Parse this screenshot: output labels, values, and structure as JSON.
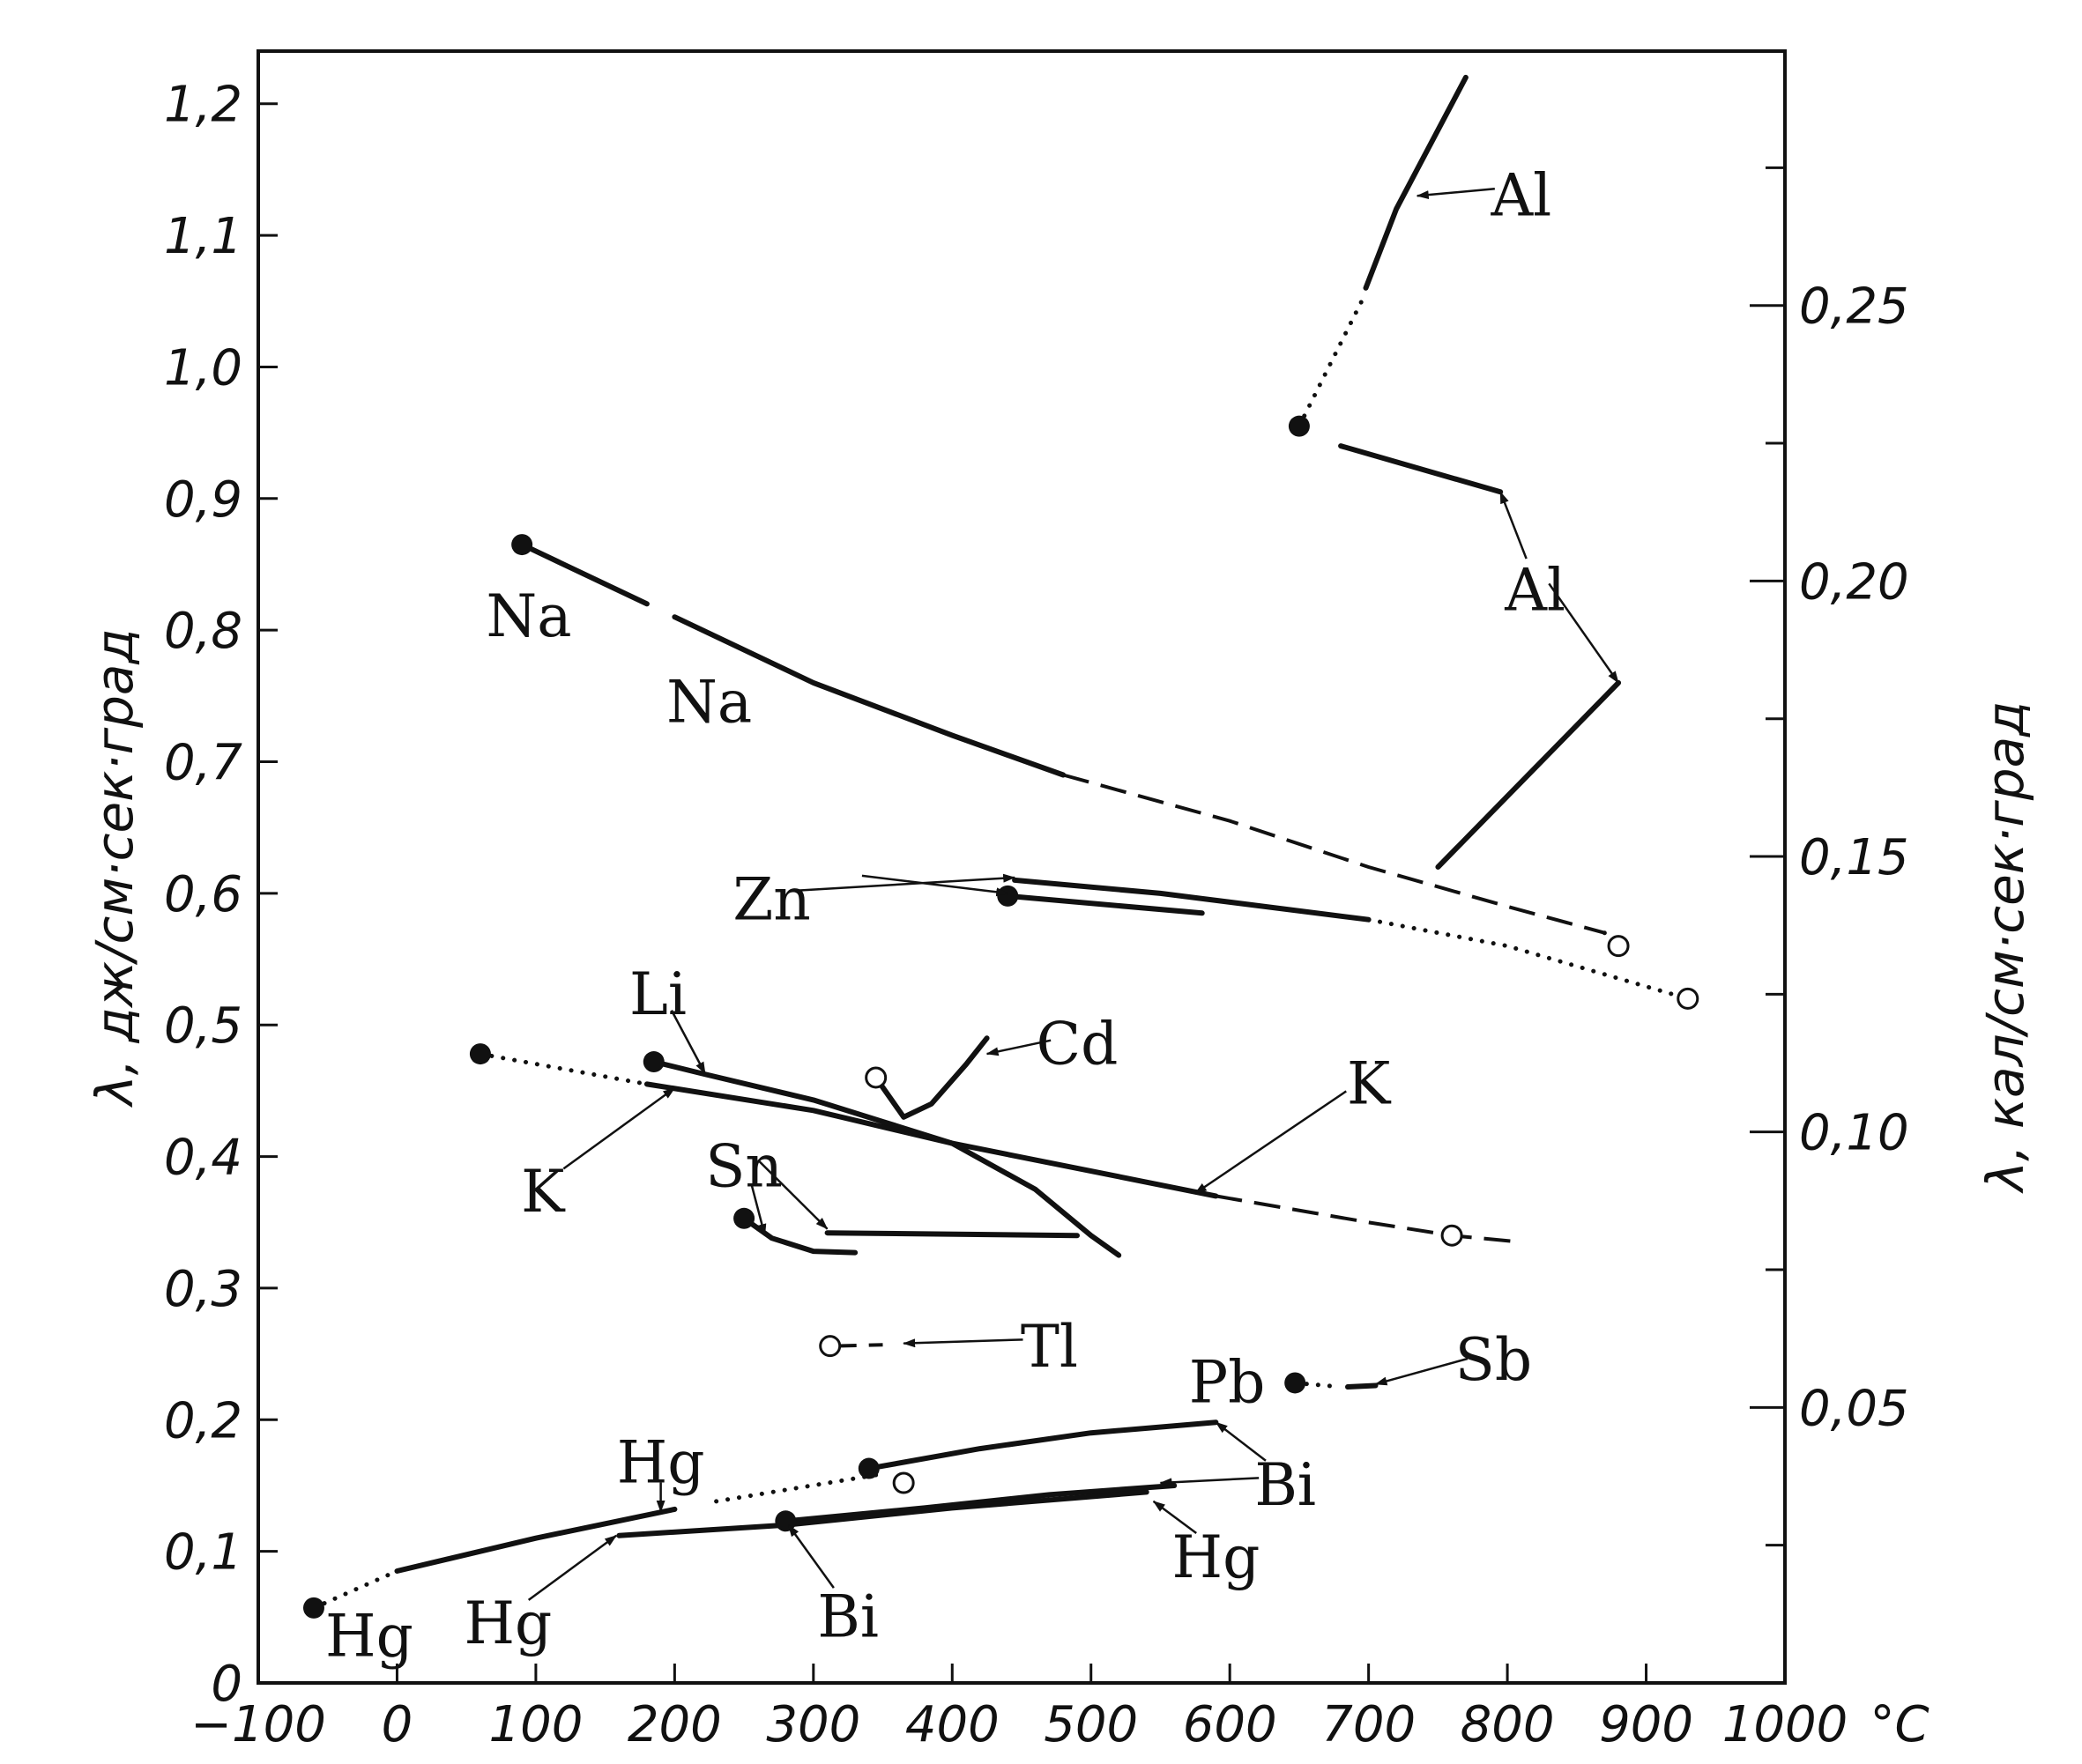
{
  "chart_data": {
    "type": "line",
    "xlabel": "°C",
    "ylabel": "λ,  дж/см·сек·град",
    "y2label": "λ,  кал/см·сек·град",
    "xlim": [
      -100,
      1000
    ],
    "ylim": [
      0,
      1.24
    ],
    "x_ticks": [
      {
        "v": -100,
        "label": "−100"
      },
      {
        "v": 0,
        "label": "0"
      },
      {
        "v": 100,
        "label": "100"
      },
      {
        "v": 200,
        "label": "200"
      },
      {
        "v": 300,
        "label": "300"
      },
      {
        "v": 400,
        "label": "400"
      },
      {
        "v": 500,
        "label": "500"
      },
      {
        "v": 600,
        "label": "600"
      },
      {
        "v": 700,
        "label": "700"
      },
      {
        "v": 800,
        "label": "800"
      },
      {
        "v": 900,
        "label": "900"
      },
      {
        "v": 1000,
        "label": "1000"
      }
    ],
    "y_ticks": [
      {
        "v": 0.0,
        "label": "0"
      },
      {
        "v": 0.1,
        "label": "0,1"
      },
      {
        "v": 0.2,
        "label": "0,2"
      },
      {
        "v": 0.3,
        "label": "0,3"
      },
      {
        "v": 0.4,
        "label": "0,4"
      },
      {
        "v": 0.5,
        "label": "0,5"
      },
      {
        "v": 0.6,
        "label": "0,6"
      },
      {
        "v": 0.7,
        "label": "0,7"
      },
      {
        "v": 0.8,
        "label": "0,8"
      },
      {
        "v": 0.9,
        "label": "0,9"
      },
      {
        "v": 1.0,
        "label": "1,0"
      },
      {
        "v": 1.1,
        "label": "1,1"
      },
      {
        "v": 1.2,
        "label": "1,2"
      }
    ],
    "y2_ticks": [
      {
        "cal": 0.05,
        "label": "0,05"
      },
      {
        "cal": 0.1,
        "label": "0,10"
      },
      {
        "cal": 0.15,
        "label": "0,15"
      },
      {
        "cal": 0.2,
        "label": "0,20"
      },
      {
        "cal": 0.25,
        "label": "0,25"
      }
    ],
    "y2_minor_cal": [
      0.025,
      0.075,
      0.125,
      0.175,
      0.225,
      0.275
    ],
    "cal_to_j": 4.1868,
    "series": [
      {
        "name": "Al",
        "style": "dotted",
        "points": [
          [
            650,
            0.955
          ],
          [
            695,
            1.05
          ]
        ]
      },
      {
        "name": "Al",
        "style": "solid",
        "points": [
          [
            698,
            1.06
          ],
          [
            720,
            1.12
          ],
          [
            735,
            1.15
          ],
          [
            770,
            1.22
          ]
        ]
      },
      {
        "name": "Al",
        "style": "solid",
        "points": [
          [
            680,
            0.94
          ],
          [
            795,
            0.905
          ]
        ]
      },
      {
        "name": "Al",
        "style": "solid",
        "points": [
          [
            750,
            0.62
          ],
          [
            880,
            0.76
          ]
        ]
      },
      {
        "name": "Na",
        "style": "solid",
        "points": [
          [
            90,
            0.865
          ],
          [
            180,
            0.82
          ]
        ]
      },
      {
        "name": "Na",
        "style": "solid",
        "points": [
          [
            200,
            0.81
          ],
          [
            300,
            0.76
          ],
          [
            400,
            0.72
          ],
          [
            480,
            0.69
          ]
        ]
      },
      {
        "name": "Na",
        "style": "dashed",
        "points": [
          [
            480,
            0.69
          ],
          [
            600,
            0.655
          ],
          [
            700,
            0.62
          ],
          [
            800,
            0.59
          ],
          [
            870,
            0.57
          ]
        ]
      },
      {
        "name": "Na",
        "style": "dotted",
        "points": [
          [
            870,
            0.57
          ],
          [
            880,
            0.56
          ]
        ]
      },
      {
        "name": "Zn",
        "style": "solid",
        "points": [
          [
            445,
            0.61
          ],
          [
            550,
            0.6
          ],
          [
            700,
            0.58
          ]
        ]
      },
      {
        "name": "Zn",
        "style": "dotted",
        "points": [
          [
            700,
            0.58
          ],
          [
            800,
            0.56
          ],
          [
            930,
            0.52
          ]
        ]
      },
      {
        "name": "Zn",
        "style": "solid",
        "points": [
          [
            440,
            0.598
          ],
          [
            580,
            0.585
          ]
        ]
      },
      {
        "name": "Cd",
        "style": "solid",
        "points": [
          [
            345,
            0.46
          ],
          [
            365,
            0.43
          ],
          [
            385,
            0.44
          ],
          [
            410,
            0.47
          ],
          [
            425,
            0.49
          ]
        ]
      },
      {
        "name": "K",
        "style": "dotted",
        "points": [
          [
            60,
            0.478
          ],
          [
            180,
            0.455
          ]
        ]
      },
      {
        "name": "K",
        "style": "solid",
        "points": [
          [
            180,
            0.455
          ],
          [
            300,
            0.435
          ],
          [
            400,
            0.41
          ],
          [
            590,
            0.37
          ]
        ]
      },
      {
        "name": "K",
        "style": "dashed",
        "points": [
          [
            590,
            0.37
          ],
          [
            700,
            0.35
          ],
          [
            760,
            0.34
          ],
          [
            810,
            0.335
          ]
        ]
      },
      {
        "name": "Li",
        "style": "solid",
        "points": [
          [
            185,
            0.472
          ],
          [
            220,
            0.463
          ],
          [
            300,
            0.443
          ],
          [
            400,
            0.41
          ],
          [
            460,
            0.375
          ],
          [
            500,
            0.34
          ],
          [
            520,
            0.325
          ]
        ]
      },
      {
        "name": "Sn",
        "style": "solid",
        "points": [
          [
            250,
            0.353
          ],
          [
            270,
            0.338
          ],
          [
            300,
            0.328
          ],
          [
            330,
            0.327
          ]
        ]
      },
      {
        "name": "Sn",
        "style": "solid",
        "points": [
          [
            310,
            0.342
          ],
          [
            490,
            0.34
          ]
        ]
      },
      {
        "name": "Tl",
        "style": "dashed",
        "points": [
          [
            312,
            0.256
          ],
          [
            350,
            0.257
          ]
        ]
      },
      {
        "name": "Pb",
        "style": "dotted",
        "points": [
          [
            647,
            0.228
          ],
          [
            680,
            0.225
          ]
        ]
      },
      {
        "name": "Sb",
        "style": "solid",
        "points": [
          [
            685,
            0.225
          ],
          [
            705,
            0.226
          ]
        ]
      },
      {
        "name": "Bi",
        "style": "solid",
        "points": [
          [
            340,
            0.163
          ],
          [
            420,
            0.178
          ],
          [
            500,
            0.19
          ],
          [
            590,
            0.198
          ]
        ]
      },
      {
        "name": "Bi",
        "style": "solid",
        "points": [
          [
            280,
            0.123
          ],
          [
            380,
            0.133
          ],
          [
            470,
            0.143
          ],
          [
            560,
            0.15
          ]
        ]
      },
      {
        "name": "Hg",
        "style": "dotted",
        "points": [
          [
            -60,
            0.057
          ],
          [
            0,
            0.085
          ]
        ]
      },
      {
        "name": "Hg",
        "style": "solid",
        "points": [
          [
            0,
            0.085
          ],
          [
            100,
            0.11
          ],
          [
            200,
            0.132
          ]
        ]
      },
      {
        "name": "Hg",
        "style": "dotted",
        "points": [
          [
            230,
            0.138
          ],
          [
            345,
            0.158
          ]
        ]
      },
      {
        "name": "Hg",
        "style": "solid",
        "points": [
          [
            160,
            0.112
          ],
          [
            280,
            0.12
          ],
          [
            400,
            0.133
          ],
          [
            540,
            0.145
          ]
        ]
      }
    ],
    "markers": [
      {
        "x": 650,
        "y": 0.955,
        "filled": true
      },
      {
        "x": 90,
        "y": 0.865,
        "filled": true
      },
      {
        "x": 880,
        "y": 0.56,
        "filled": false
      },
      {
        "x": 930,
        "y": 0.52,
        "filled": false
      },
      {
        "x": 440,
        "y": 0.598,
        "filled": true
      },
      {
        "x": 345,
        "y": 0.46,
        "filled": false
      },
      {
        "x": 60,
        "y": 0.478,
        "filled": true
      },
      {
        "x": 185,
        "y": 0.472,
        "filled": true
      },
      {
        "x": 760,
        "y": 0.34,
        "filled": false
      },
      {
        "x": 250,
        "y": 0.353,
        "filled": true
      },
      {
        "x": 312,
        "y": 0.256,
        "filled": false
      },
      {
        "x": 647,
        "y": 0.228,
        "filled": true
      },
      {
        "x": 340,
        "y": 0.163,
        "filled": true
      },
      {
        "x": 365,
        "y": 0.152,
        "filled": false
      },
      {
        "x": 280,
        "y": 0.123,
        "filled": true
      },
      {
        "x": -60,
        "y": 0.057,
        "filled": true
      }
    ],
    "annotations": [
      {
        "text": "Al",
        "x": 810,
        "y": 1.13,
        "arrow_to": [
          735,
          1.13
        ]
      },
      {
        "text": "Al",
        "x": 820,
        "y": 0.83,
        "arrow_to": [
          795,
          0.905
        ]
      },
      {
        "text": "",
        "x": 830,
        "y": 0.83,
        "arrow_to": [
          880,
          0.76
        ]
      },
      {
        "text": "Na",
        "x": 95,
        "y": 0.81
      },
      {
        "text": "Na",
        "x": 225,
        "y": 0.745
      },
      {
        "text": "Zn",
        "x": 270,
        "y": 0.595,
        "arrow_to": [
          445,
          0.612
        ]
      },
      {
        "text": "",
        "x": 335,
        "y": 0.608,
        "arrow_to": [
          440,
          0.6
        ]
      },
      {
        "text": "Li",
        "x": 188,
        "y": 0.523,
        "arrow_to": [
          222,
          0.463
        ]
      },
      {
        "text": "Cd",
        "x": 490,
        "y": 0.485,
        "arrow_to": [
          425,
          0.478
        ]
      },
      {
        "text": "K",
        "x": 700,
        "y": 0.455,
        "arrow_to": [
          575,
          0.372
        ]
      },
      {
        "text": "K",
        "x": 105,
        "y": 0.373,
        "arrow_to": [
          200,
          0.452
        ]
      },
      {
        "text": "Sn",
        "x": 250,
        "y": 0.392,
        "arrow_to": [
          265,
          0.34
        ]
      },
      {
        "text": "",
        "x": 260,
        "y": 0.392,
        "arrow_to": [
          310,
          0.345
        ]
      },
      {
        "text": "Tl",
        "x": 470,
        "y": 0.255,
        "arrow_to": [
          365,
          0.258
        ]
      },
      {
        "text": "Pb",
        "x": 598,
        "y": 0.228
      },
      {
        "text": "Sb",
        "x": 790,
        "y": 0.245,
        "arrow_to": [
          705,
          0.227
        ]
      },
      {
        "text": "Bi",
        "x": 640,
        "y": 0.15,
        "arrow_to": [
          590,
          0.198
        ]
      },
      {
        "text": "Bi",
        "x": 640,
        "y": 0.15,
        "arrow_to": [
          550,
          0.152
        ]
      },
      {
        "text": "Bi",
        "x": 325,
        "y": 0.05,
        "arrow_to": [
          282,
          0.12
        ]
      },
      {
        "text": "Hg",
        "x": 190,
        "y": 0.167,
        "arrow_to": [
          190,
          0.13
        ]
      },
      {
        "text": "Hg",
        "x": 590,
        "y": 0.095,
        "arrow_to": [
          545,
          0.138
        ]
      },
      {
        "text": "Hg",
        "x": 80,
        "y": 0.045,
        "arrow_to": [
          158,
          0.112
        ]
      },
      {
        "text": "Hg",
        "x": -20,
        "y": 0.035
      }
    ]
  }
}
